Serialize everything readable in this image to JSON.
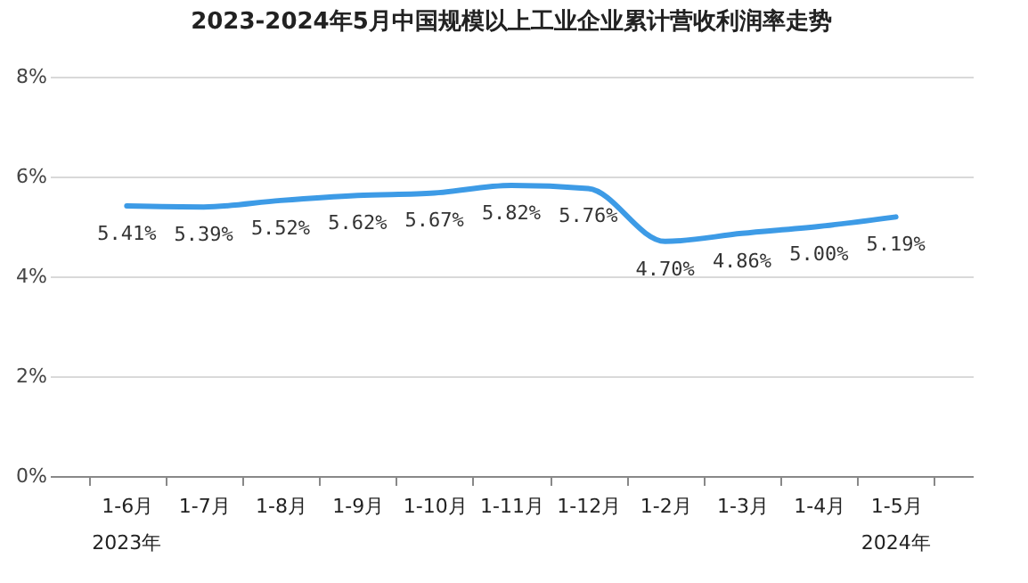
{
  "chart_data": {
    "type": "line",
    "title": "2023-2024年5月中国规模以上工业企业累计营收利润率走势",
    "categories": [
      "1-6月",
      "1-7月",
      "1-8月",
      "1-9月",
      "1-10月",
      "1-11月",
      "1-12月",
      "1-2月",
      "1-3月",
      "1-4月",
      "1-5月"
    ],
    "series": [
      {
        "color": "#3d9be6",
        "values": [
          5.41,
          5.39,
          5.52,
          5.62,
          5.67,
          5.82,
          5.76,
          4.7,
          4.86,
          5.0,
          5.19
        ],
        "value_labels": [
          "5.41%",
          "5.39%",
          "5.52%",
          "5.62%",
          "5.67%",
          "5.82%",
          "5.76%",
          "4.70%",
          "4.86%",
          "5.00%",
          "5.19%"
        ]
      }
    ],
    "ylim": [
      0,
      8
    ],
    "yticks": [
      {
        "value": 0,
        "label": "0%"
      },
      {
        "value": 2,
        "label": "2%"
      },
      {
        "value": 4,
        "label": "4%"
      },
      {
        "value": 6,
        "label": "6%"
      },
      {
        "value": 8,
        "label": "8%"
      }
    ],
    "grid": "y",
    "marker": "none",
    "line_style": "solid",
    "annotations": [
      "2023年",
      "2024年"
    ]
  }
}
